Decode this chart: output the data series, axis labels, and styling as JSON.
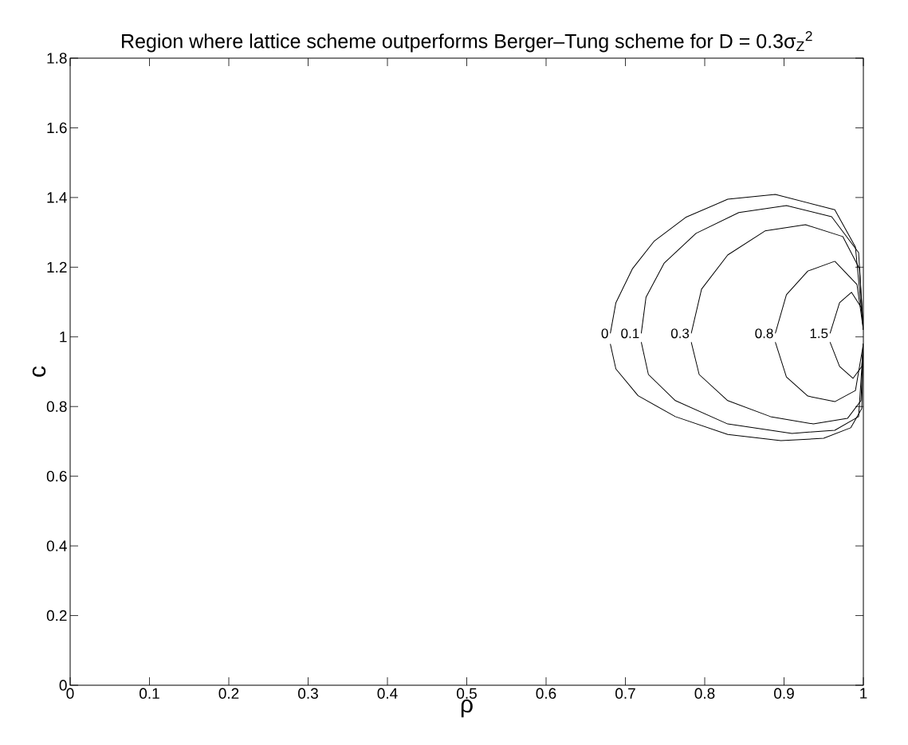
{
  "chart_data": {
    "type": "line",
    "title": "Region where lattice scheme outperforms Berger–Tung scheme for D = 0.3σ$_{Z}$$^{2}$",
    "xlabel": "ρ",
    "ylabel": "c",
    "xlim": [
      0,
      1
    ],
    "ylim": [
      0,
      1.8
    ],
    "xticks": [
      0,
      0.1,
      0.2,
      0.3,
      0.4,
      0.5,
      0.6,
      0.7,
      0.8,
      0.9,
      1
    ],
    "yticks": [
      0,
      0.2,
      0.4,
      0.6,
      0.8,
      1,
      1.2,
      1.4,
      1.6,
      1.8
    ],
    "marker": "none",
    "line_style": "solid",
    "series": [
      {
        "name": "0",
        "color": "#000000",
        "x": [
          0.681,
          0.688,
          0.709,
          0.736,
          0.776,
          0.829,
          0.889,
          0.964,
          0.99,
          1
        ],
        "values": [
          1.01,
          1.098,
          1.196,
          1.274,
          1.343,
          1.395,
          1.409,
          1.365,
          1.258,
          1.02
        ]
      },
      {
        "color": "#000000",
        "x": [
          0.681,
          0.688,
          0.716,
          0.763,
          0.829,
          0.896,
          0.95,
          0.984,
          0.998,
          1
        ],
        "values": [
          0.98,
          0.908,
          0.831,
          0.771,
          0.72,
          0.702,
          0.709,
          0.739,
          0.794,
          0.98
        ]
      },
      {
        "name": "0.1",
        "color": "#000000",
        "x": [
          0.72,
          0.726,
          0.749,
          0.789,
          0.843,
          0.903,
          0.96,
          0.994,
          1
        ],
        "values": [
          1.01,
          1.114,
          1.212,
          1.297,
          1.357,
          1.377,
          1.345,
          1.242,
          1.02
        ]
      },
      {
        "color": "#000000",
        "x": [
          0.72,
          0.729,
          0.763,
          0.829,
          0.91,
          0.964,
          0.994,
          1
        ],
        "values": [
          0.985,
          0.892,
          0.817,
          0.75,
          0.723,
          0.732,
          0.771,
          0.98
        ]
      },
      {
        "name": "0.3",
        "color": "#000000",
        "x": [
          0.783,
          0.796,
          0.829,
          0.876,
          0.927,
          0.974,
          0.995,
          1
        ],
        "values": [
          1.01,
          1.137,
          1.235,
          1.304,
          1.322,
          1.288,
          1.196,
          1.02
        ]
      },
      {
        "color": "#000000",
        "x": [
          0.783,
          0.793,
          0.829,
          0.883,
          0.937,
          0.98,
          0.997,
          1
        ],
        "values": [
          0.985,
          0.892,
          0.817,
          0.771,
          0.75,
          0.766,
          0.817,
          0.98
        ]
      },
      {
        "name": "0.8",
        "color": "#000000",
        "x": [
          0.889,
          0.903,
          0.93,
          0.964,
          0.992,
          1
        ],
        "values": [
          1.01,
          1.121,
          1.189,
          1.217,
          1.15,
          1.02
        ]
      },
      {
        "color": "#000000",
        "x": [
          0.889,
          0.903,
          0.93,
          0.964,
          0.99,
          1
        ],
        "values": [
          0.985,
          0.885,
          0.83,
          0.814,
          0.846,
          0.98
        ]
      },
      {
        "name": "1.5",
        "color": "#000000",
        "x": [
          0.958,
          0.97,
          0.985,
          0.998,
          1
        ],
        "values": [
          1.01,
          1.098,
          1.128,
          1.082,
          1.02
        ]
      },
      {
        "color": "#000000",
        "x": [
          0.958,
          0.97,
          0.987,
          0.998,
          1
        ],
        "values": [
          0.985,
          0.915,
          0.881,
          0.915,
          0.98
        ]
      }
    ]
  }
}
